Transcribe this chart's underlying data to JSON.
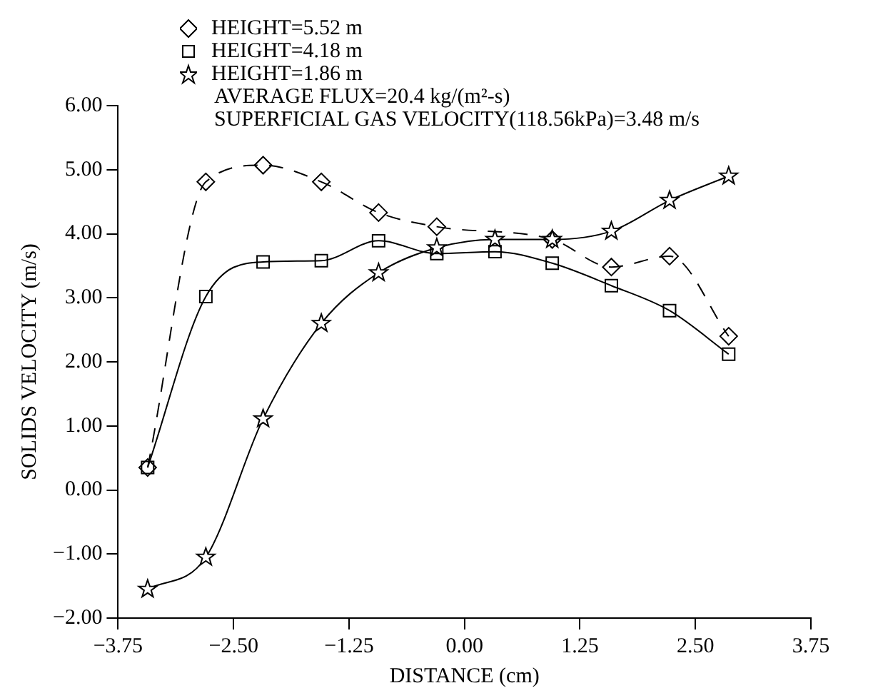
{
  "chart_data": {
    "type": "line",
    "xlabel": "DISTANCE (cm)",
    "ylabel": "SOLIDS VELOCITY (m/s)",
    "x": [
      -3.43,
      -2.8,
      -2.18,
      -1.55,
      -0.93,
      -0.3,
      0.33,
      0.95,
      1.59,
      2.22,
      2.86
    ],
    "series": [
      {
        "name": "HEIGHT=5.52 m",
        "color": "#000000",
        "marker": "diamond",
        "line_style": "dashed",
        "values": [
          0.35,
          4.81,
          5.07,
          4.81,
          4.33,
          4.11,
          null,
          3.91,
          3.48,
          3.65,
          2.4
        ]
      },
      {
        "name": "HEIGHT=4.18 m",
        "color": "#000000",
        "marker": "square",
        "line_style": "solid",
        "values": [
          0.35,
          3.02,
          3.56,
          3.58,
          3.89,
          3.69,
          3.72,
          3.54,
          3.19,
          2.8,
          2.12
        ]
      },
      {
        "name": "HEIGHT=1.86 m",
        "color": "#000000",
        "marker": "star",
        "line_style": "solid",
        "values": [
          -1.55,
          -1.05,
          1.11,
          2.6,
          3.39,
          3.78,
          3.91,
          3.91,
          4.04,
          4.52,
          4.9
        ]
      }
    ],
    "annotations": [
      "AVERAGE FLUX=20.4 kg/(m²-s)",
      "SUPERFICIAL GAS VELOCITY(118.56kPa)=3.48 m/s"
    ],
    "xlim": [
      -3.75,
      3.75
    ],
    "xticks": [
      {
        "value": -3.75,
        "label": "−3.75"
      },
      {
        "value": -2.5,
        "label": "−2.50"
      },
      {
        "value": -1.25,
        "label": "−1.25"
      },
      {
        "value": 0,
        "label": "0.00"
      },
      {
        "value": 1.25,
        "label": "1.25"
      },
      {
        "value": 2.5,
        "label": "2.50"
      },
      {
        "value": 3.75,
        "label": "3.75"
      }
    ],
    "ylim": [
      -2,
      6
    ],
    "yticks": [
      {
        "value": -2,
        "label": "−2.00"
      },
      {
        "value": -1,
        "label": "−1.00"
      },
      {
        "value": 0,
        "label": "0.00"
      },
      {
        "value": 1,
        "label": "1.00"
      },
      {
        "value": 2,
        "label": "2.00"
      },
      {
        "value": 3,
        "label": "3.00"
      },
      {
        "value": 4,
        "label": "4.00"
      },
      {
        "value": 5,
        "label": "5.00"
      },
      {
        "value": 6,
        "label": "6.00"
      }
    ],
    "grid": false,
    "legend": "top left"
  }
}
